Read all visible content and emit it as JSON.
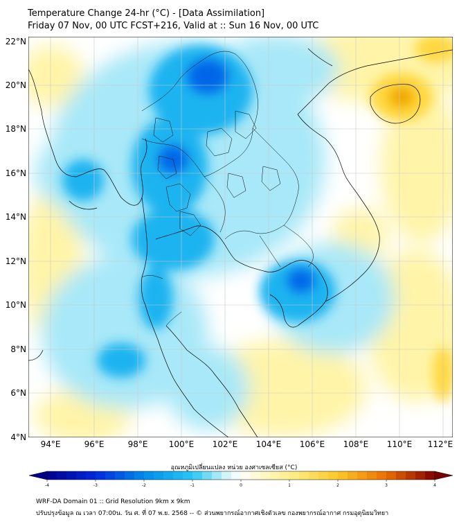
{
  "header": {
    "title_line1": "Temperature Change 24-hr (°C) - [Data Assimilation]",
    "title_line2": "Friday 07 Nov, 00 UTC FCST+216, Valid at :: Sun 16 Nov, 00 UTC"
  },
  "map": {
    "lat_labels": [
      "22°N",
      "20°N",
      "18°N",
      "16°N",
      "14°N",
      "12°N",
      "10°N",
      "8°N",
      "6°N",
      "4°N"
    ],
    "lon_labels": [
      "94°E",
      "96°E",
      "98°E",
      "100°E",
      "102°E",
      "104°E",
      "106°E",
      "108°E",
      "110°E",
      "112°E"
    ],
    "lat_range": [
      4,
      22.2
    ],
    "lon_range": [
      93,
      112.5
    ],
    "colors": {
      "cold_strong": "#0066e8",
      "cold": "#1fb4f0",
      "cool": "#a8e8f8",
      "neutral": "#ffffff",
      "warm": "#fff4a8",
      "warmer": "#ffd840",
      "hot": "#f0a800"
    }
  },
  "colorbar": {
    "title": "อุณหภูมิเปลี่ยนแปลง หน่วย องศาเซลเซียส (°C)",
    "ticks": [
      "-4",
      "-3",
      "-2",
      "-1",
      "0",
      "1",
      "2",
      "3",
      "4"
    ]
  },
  "footer": {
    "line1": "WRF-DA Domain 01 :: Grid Resolution 9km x 9km",
    "line2": "ปรับปรุงข้อมูล ณ เวลา 07:00น. วัน ศ. ที่ 07 พ.ย. 2568 -- © ส่วนพยากรณ์อากาศเชิงตัวเลข กองพยากรณ์อากาศ กรมอุตุนิยมวิทยา"
  }
}
